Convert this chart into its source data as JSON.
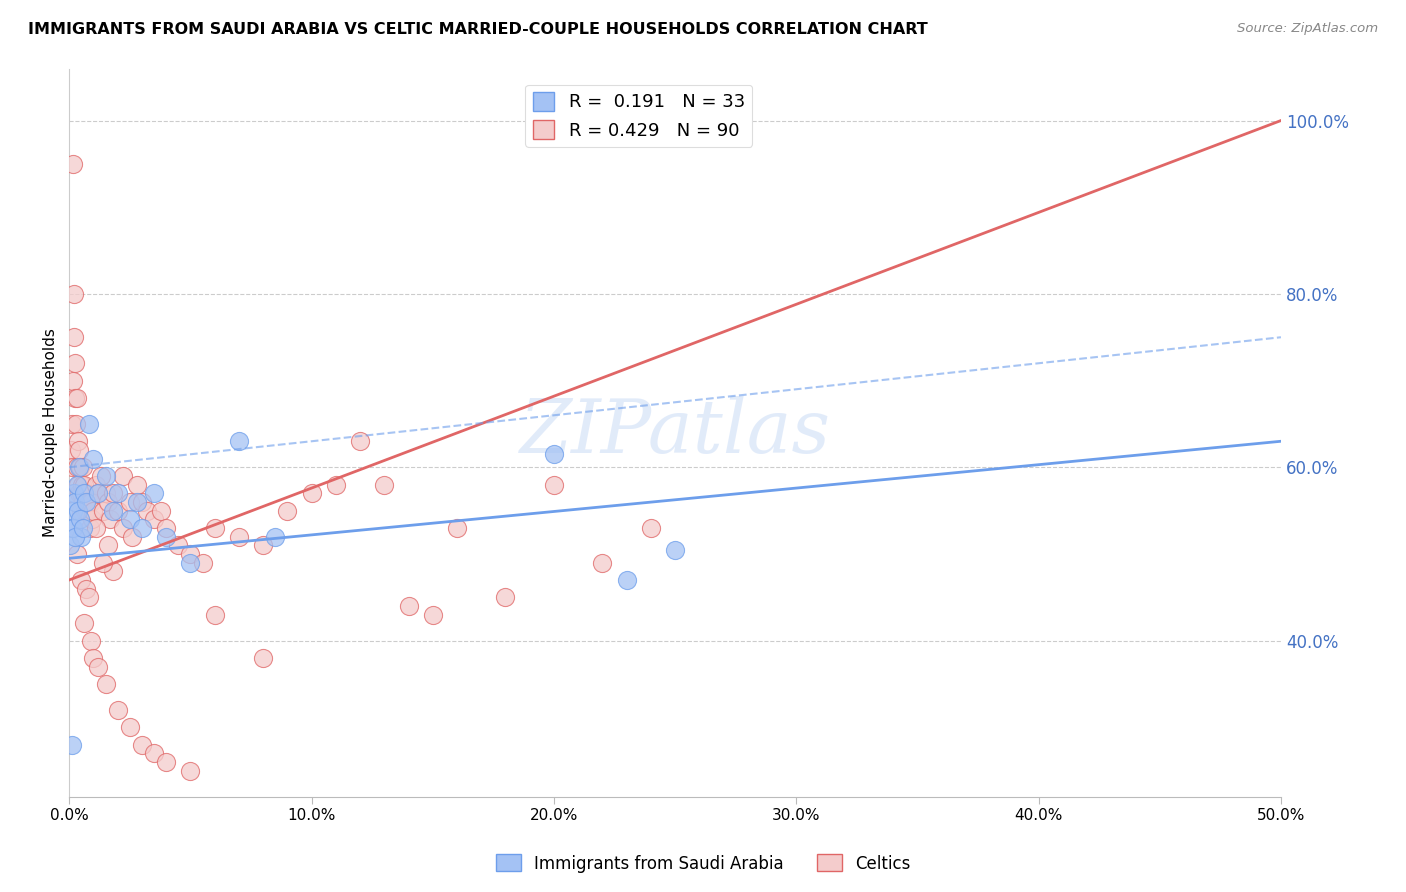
{
  "title": "IMMIGRANTS FROM SAUDI ARABIA VS CELTIC MARRIED-COUPLE HOUSEHOLDS CORRELATION CHART",
  "source": "Source: ZipAtlas.com",
  "ylabel_left": "Married-couple Households",
  "x_tick_labels": [
    "0.0%",
    "10.0%",
    "20.0%",
    "30.0%",
    "40.0%",
    "50.0%"
  ],
  "x_tick_vals": [
    0.0,
    10.0,
    20.0,
    30.0,
    40.0,
    50.0
  ],
  "y_tick_labels_right": [
    "40.0%",
    "60.0%",
    "80.0%",
    "100.0%"
  ],
  "y_tick_vals_right": [
    40.0,
    60.0,
    80.0,
    100.0
  ],
  "xlim": [
    0.0,
    50.0
  ],
  "ylim": [
    22.0,
    106.0
  ],
  "blue_color": "#a4c2f4",
  "pink_color": "#f4cccc",
  "blue_edge_color": "#6d9eeb",
  "pink_edge_color": "#e06666",
  "blue_line_color": "#6d9eeb",
  "pink_line_color": "#e06666",
  "blue_r": 0.191,
  "blue_n": 33,
  "pink_r": 0.429,
  "pink_n": 90,
  "watermark": "ZIPatlas",
  "legend_label_blue": "Immigrants from Saudi Arabia",
  "legend_label_pink": "Celtics",
  "pink_line_x0": 0.0,
  "pink_line_y0": 47.0,
  "pink_line_x1": 50.0,
  "pink_line_y1": 100.0,
  "blue_line_x0": 0.0,
  "blue_line_y0": 49.5,
  "blue_line_x1": 50.0,
  "blue_line_y1": 63.0,
  "blue_dash_x0": 0.0,
  "blue_dash_y0": 60.0,
  "blue_dash_x1": 50.0,
  "blue_dash_y1": 75.0,
  "blue_scatter_x": [
    0.05,
    0.1,
    0.15,
    0.2,
    0.25,
    0.3,
    0.35,
    0.4,
    0.5,
    0.6,
    0.7,
    0.8,
    1.0,
    1.2,
    1.5,
    1.8,
    2.0,
    2.5,
    2.8,
    3.0,
    3.5,
    4.0,
    5.0,
    7.0,
    8.5,
    20.0,
    23.0,
    25.0,
    0.15,
    0.25,
    0.45,
    0.55,
    0.1
  ],
  "blue_scatter_y": [
    51.0,
    53.0,
    55.0,
    57.0,
    56.0,
    58.0,
    55.0,
    60.0,
    52.0,
    57.0,
    56.0,
    65.0,
    61.0,
    57.0,
    59.0,
    55.0,
    57.0,
    54.0,
    56.0,
    53.0,
    57.0,
    52.0,
    49.0,
    63.0,
    52.0,
    61.5,
    47.0,
    50.5,
    53.0,
    52.0,
    54.0,
    53.0,
    28.0
  ],
  "pink_scatter_x": [
    0.05,
    0.08,
    0.1,
    0.12,
    0.15,
    0.18,
    0.2,
    0.22,
    0.25,
    0.28,
    0.3,
    0.32,
    0.35,
    0.38,
    0.4,
    0.42,
    0.45,
    0.48,
    0.5,
    0.52,
    0.55,
    0.58,
    0.6,
    0.65,
    0.7,
    0.75,
    0.8,
    0.85,
    0.9,
    0.95,
    1.0,
    1.1,
    1.2,
    1.3,
    1.4,
    1.5,
    1.6,
    1.7,
    1.8,
    2.0,
    2.2,
    2.5,
    2.8,
    3.0,
    3.2,
    3.5,
    3.8,
    4.0,
    4.5,
    5.0,
    5.5,
    6.0,
    7.0,
    8.0,
    9.0,
    10.0,
    11.0,
    12.0,
    13.0,
    14.0,
    15.0,
    16.0,
    18.0,
    20.0,
    22.0,
    24.0,
    0.3,
    0.5,
    0.6,
    0.7,
    0.8,
    0.9,
    1.0,
    1.2,
    1.5,
    2.0,
    2.5,
    3.0,
    3.5,
    4.0,
    5.0,
    6.0,
    8.0,
    1.8,
    2.2,
    2.6,
    1.6,
    1.4,
    1.1,
    0.15
  ],
  "pink_scatter_y": [
    57.0,
    62.0,
    60.0,
    65.0,
    70.0,
    75.0,
    80.0,
    68.0,
    72.0,
    65.0,
    68.0,
    60.0,
    63.0,
    58.0,
    62.0,
    57.0,
    60.0,
    57.0,
    55.0,
    58.0,
    56.0,
    60.0,
    58.0,
    55.0,
    57.0,
    55.0,
    56.0,
    53.0,
    56.0,
    54.0,
    55.0,
    58.0,
    57.0,
    59.0,
    55.0,
    57.0,
    56.0,
    54.0,
    57.0,
    55.0,
    59.0,
    56.0,
    58.0,
    56.0,
    55.0,
    54.0,
    55.0,
    53.0,
    51.0,
    50.0,
    49.0,
    53.0,
    52.0,
    51.0,
    55.0,
    57.0,
    58.0,
    63.0,
    58.0,
    44.0,
    43.0,
    53.0,
    45.0,
    58.0,
    49.0,
    53.0,
    50.0,
    47.0,
    42.0,
    46.0,
    45.0,
    40.0,
    38.0,
    37.0,
    35.0,
    32.0,
    30.0,
    28.0,
    27.0,
    26.0,
    25.0,
    43.0,
    38.0,
    48.0,
    53.0,
    52.0,
    51.0,
    49.0,
    53.0,
    95.0
  ]
}
